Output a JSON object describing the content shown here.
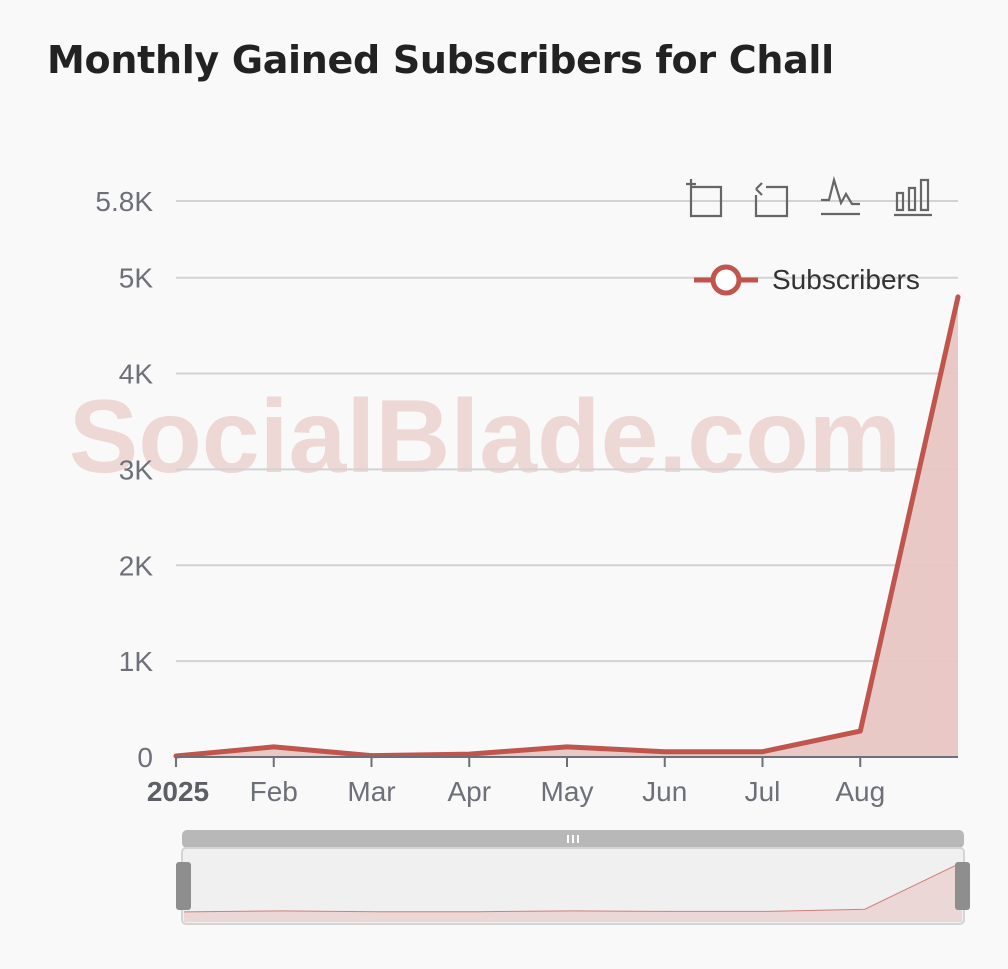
{
  "title": "Monthly Gained Subscribers for Chall",
  "watermark": "SocialBlade.com",
  "toolbar": {
    "icons": [
      "zoom-icon",
      "zoom-reset-icon",
      "line-chart-icon",
      "bar-chart-icon"
    ]
  },
  "colors": {
    "line": "#c0554e",
    "area": "#e8c6c3",
    "grid": "#d3d3d3",
    "axis": "#6e7079",
    "slider_bar": "#b8b8b8",
    "slider_handle": "#8e8e8e"
  },
  "chart_data": {
    "type": "area",
    "title": "Monthly Gained Subscribers for Chall",
    "x_tick_labels": [
      "2025",
      "Feb",
      "Mar",
      "Apr",
      "May",
      "Jun",
      "Jul",
      "Aug"
    ],
    "x": [
      "2025-01",
      "2025-02",
      "2025-03",
      "2025-04",
      "2025-05",
      "2025-06",
      "2025-07",
      "2025-08",
      "2025-09"
    ],
    "series": [
      {
        "name": "Subscribers",
        "values": [
          10,
          105,
          15,
          30,
          105,
          55,
          55,
          270,
          4800
        ]
      }
    ],
    "y_tick_labels": [
      "0",
      "1K",
      "2K",
      "3K",
      "4K",
      "5K",
      "5.8K"
    ],
    "y_ticks": [
      0,
      1000,
      2000,
      3000,
      4000,
      5000,
      5800
    ],
    "ylim": [
      0,
      5800
    ],
    "grid": true,
    "legend": "top-right",
    "datazoom_slider": true
  }
}
